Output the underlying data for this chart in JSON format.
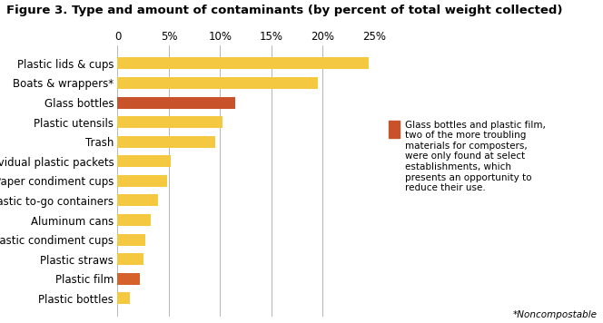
{
  "title": "Figure 3. Type and amount of contaminants (by percent of total weight collected)",
  "categories": [
    "Plastic bottles",
    "Plastic film",
    "Plastic straws",
    "Plastic condiment cups",
    "Aluminum cans",
    "Plastic to-go containers",
    "Paper condiment cups",
    "Individual plastic packets",
    "Trash",
    "Plastic utensils",
    "Glass bottles",
    "Boats & wrappers*",
    "Plastic lids & cups"
  ],
  "values": [
    1.2,
    2.2,
    2.5,
    2.7,
    3.2,
    3.9,
    4.8,
    5.2,
    9.5,
    10.2,
    11.5,
    19.5,
    24.5
  ],
  "bar_colors": [
    "#F5C842",
    "#D4622A",
    "#F5C842",
    "#F5C842",
    "#F5C842",
    "#F5C842",
    "#F5C842",
    "#F5C842",
    "#F5C842",
    "#F5C842",
    "#C8522A",
    "#F5C842",
    "#F5C842"
  ],
  "xlim": [
    0,
    25
  ],
  "xticks": [
    0,
    5,
    10,
    15,
    20,
    25
  ],
  "xticklabels": [
    "0",
    "5%",
    "10%",
    "15%",
    "20%",
    "25%"
  ],
  "annotation_text": "Glass bottles and plastic film,\ntwo of the more troubling\nmaterials for composters,\nwere only found at select\nestablishments, which\npresents an opportunity to\nreduce their use.",
  "footnote": "*Noncompostable",
  "legend_color": "#C8522A",
  "background_color": "#FFFFFF",
  "bar_height": 0.6,
  "title_fontsize": 9.5,
  "label_fontsize": 8.5,
  "tick_fontsize": 8.5,
  "annotation_fontsize": 7.5,
  "footnote_fontsize": 7.5
}
